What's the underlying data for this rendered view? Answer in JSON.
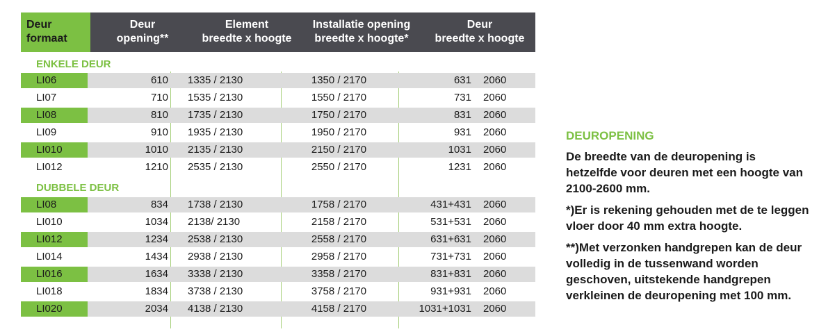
{
  "header": {
    "col1": [
      "Deur",
      "formaat"
    ],
    "col2": [
      "Deur",
      "opening**"
    ],
    "col3": [
      "Element",
      "breedte x hoogte"
    ],
    "col4": [
      "Installatie opening",
      "breedte x hoogte*"
    ],
    "col5": [
      "Deur",
      "breedte x hoogte"
    ]
  },
  "sections": {
    "single": "ENKELE DEUR",
    "double": "DUBBELE DEUR"
  },
  "single_rows": [
    {
      "code": "LI06",
      "opening": "610",
      "element": "1335 / 2130",
      "install": "1350 / 2170",
      "door_w": "631",
      "door_h": "2060"
    },
    {
      "code": "LI07",
      "opening": "710",
      "element": "1535 / 2130",
      "install": "1550 / 2170",
      "door_w": "731",
      "door_h": "2060"
    },
    {
      "code": "LI08",
      "opening": "810",
      "element": "1735 / 2130",
      "install": "1750 / 2170",
      "door_w": "831",
      "door_h": "2060"
    },
    {
      "code": "LI09",
      "opening": "910",
      "element": "1935 / 2130",
      "install": "1950 / 2170",
      "door_w": "931",
      "door_h": "2060"
    },
    {
      "code": "LI010",
      "opening": "1010",
      "element": "2135 / 2130",
      "install": "2150 / 2170",
      "door_w": "1031",
      "door_h": "2060"
    },
    {
      "code": "LI012",
      "opening": "1210",
      "element": "2535 / 2130",
      "install": "2550 / 2170",
      "door_w": "1231",
      "door_h": "2060"
    }
  ],
  "double_rows": [
    {
      "code": "LI08",
      "opening": "834",
      "element": "1738 / 2130",
      "install": "1758 / 2170",
      "door_w": "431+431",
      "door_h": "2060"
    },
    {
      "code": "LI010",
      "opening": "1034",
      "element": "2138/  2130",
      "install": "2158 / 2170",
      "door_w": "531+531",
      "door_h": "2060"
    },
    {
      "code": "LI012",
      "opening": "1234",
      "element": "2538 / 2130",
      "install": "2558 / 2170",
      "door_w": "631+631",
      "door_h": "2060"
    },
    {
      "code": "LI014",
      "opening": "1434",
      "element": "2938 / 2130",
      "install": "2958 / 2170",
      "door_w": "731+731",
      "door_h": "2060"
    },
    {
      "code": "LI016",
      "opening": "1634",
      "element": "3338 / 2130",
      "install": "3358 / 2170",
      "door_w": "831+831",
      "door_h": "2060"
    },
    {
      "code": "LI018",
      "opening": "1834",
      "element": "3738 / 2130",
      "install": "3758 / 2170",
      "door_w": "931+931",
      "door_h": "2060"
    },
    {
      "code": "LI020",
      "opening": "2034",
      "element": "4138 / 2130",
      "install": "4158 / 2170",
      "door_w": "1031+1031",
      "door_h": "2060"
    }
  ],
  "side": {
    "title": "DEUROPENING",
    "p1": "De breedte van de deuropening is hetzelfde voor deuren met een hoogte van 2100-2600 mm.",
    "p2": "*)Er is rekening gehouden met de te leggen vloer door 40 mm extra hoogte.",
    "p3": "**)Met verzonken handgrepen kan de deur volledig in de tussenwand worden geschoven, uitstekende handgrepen verkleinen de deuropening met 100 mm."
  },
  "colors": {
    "green": "#7cc043",
    "header_dark": "#4a4a50",
    "row_shade": "#dcdcdc"
  }
}
